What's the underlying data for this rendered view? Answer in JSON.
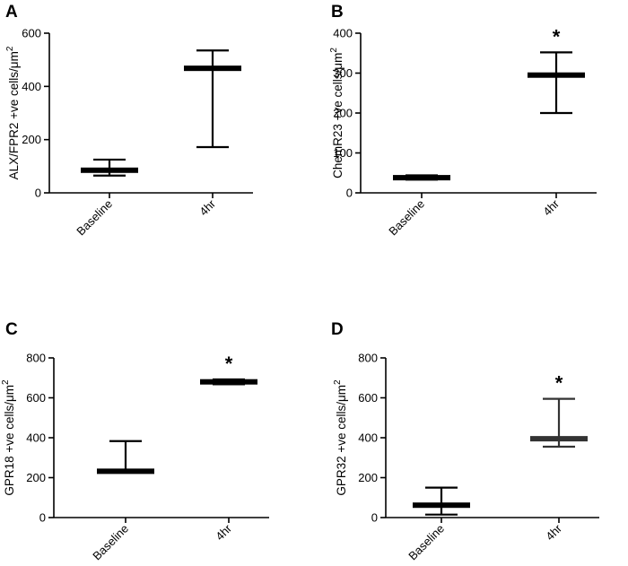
{
  "chart_data": [
    {
      "panel": "A",
      "type": "box",
      "ylabel_text": "ALX/FPR2 +ve cells/",
      "ylabel_unit": "μm",
      "ylabel_sup": "2",
      "categories": [
        "Baseline",
        "4hr"
      ],
      "ylim": [
        0,
        600
      ],
      "yticks": [
        0,
        200,
        400,
        600
      ],
      "series": [
        {
          "category": "Baseline",
          "low": 65,
          "median": 85,
          "high": 125
        },
        {
          "category": "4hr",
          "low": 172,
          "median": 468,
          "high": 535
        }
      ],
      "annotations": []
    },
    {
      "panel": "B",
      "type": "box",
      "ylabel_text": "ChemR23 +ve cells/",
      "ylabel_unit": "μm",
      "ylabel_sup": "2",
      "categories": [
        "Baseline",
        "4hr"
      ],
      "ylim": [
        0,
        400
      ],
      "yticks": [
        0,
        100,
        200,
        300,
        400
      ],
      "series": [
        {
          "category": "Baseline",
          "low": 33,
          "median": 38,
          "high": 44
        },
        {
          "category": "4hr",
          "low": 200,
          "median": 295,
          "high": 352
        }
      ],
      "annotations": [
        {
          "category": "4hr",
          "text": "*"
        }
      ]
    },
    {
      "panel": "C",
      "type": "box",
      "ylabel_text": "GPR18 +ve cells/",
      "ylabel_unit": "μm",
      "ylabel_sup": "2",
      "categories": [
        "Baseline",
        "4hr"
      ],
      "ylim": [
        0,
        800
      ],
      "yticks": [
        0,
        200,
        400,
        600,
        800
      ],
      "series": [
        {
          "category": "Baseline",
          "low": 230,
          "median": 232,
          "high": 383
        },
        {
          "category": "4hr",
          "low": 668,
          "median": 680,
          "high": 692
        }
      ],
      "annotations": [
        {
          "category": "4hr",
          "text": "*"
        }
      ]
    },
    {
      "panel": "D",
      "type": "box",
      "ylabel_text": "GPR32 +ve cells/",
      "ylabel_unit": "μm",
      "ylabel_sup": "2",
      "categories": [
        "Baseline",
        "4hr"
      ],
      "ylim": [
        0,
        800
      ],
      "yticks": [
        0,
        200,
        400,
        600,
        800
      ],
      "series": [
        {
          "category": "Baseline",
          "low": 15,
          "median": 62,
          "high": 150
        },
        {
          "category": "4hr",
          "low": 355,
          "median": 395,
          "high": 595
        }
      ],
      "annotations": [
        {
          "category": "4hr",
          "text": "*"
        }
      ]
    }
  ]
}
